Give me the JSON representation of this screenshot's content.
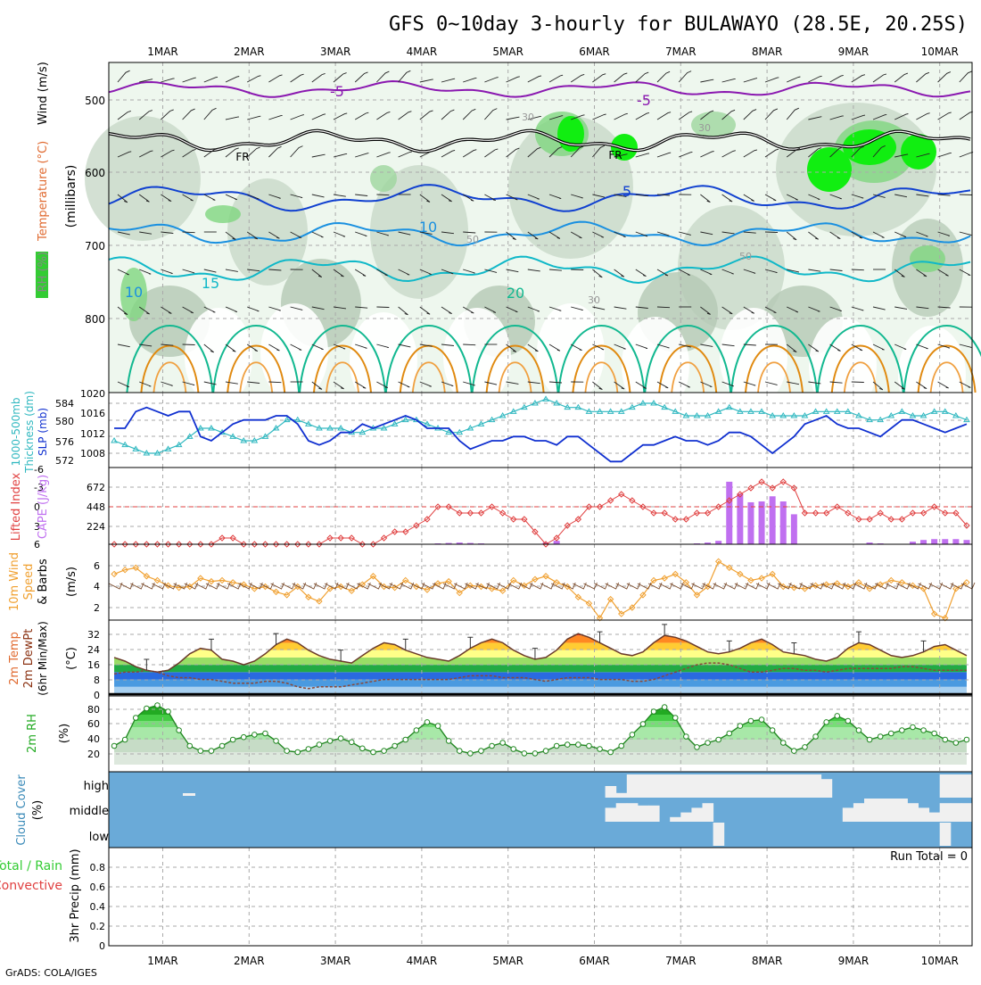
{
  "title": "GFS 0~10day 3-hourly for BULAWAYO (28.5E, 20.25S)",
  "footer": "GrADS: COLA/IGES",
  "dates": [
    "1MAR",
    "2MAR",
    "3MAR",
    "4MAR",
    "5MAR",
    "6MAR",
    "7MAR",
    "8MAR",
    "9MAR",
    "10MAR"
  ],
  "colors": {
    "rh_green": "#33cc33",
    "bright_green": "#11ee11",
    "temperature_warm": "#e08a10",
    "freezing": "#000000",
    "minus5": "#8a18b0",
    "plus5": "#1040d0",
    "plus10": "#1a90e0",
    "plus15": "#10b8c8",
    "plus20": "#12b890",
    "slp": "#1030d0",
    "thickness": "#30b8c0",
    "lifted_index": "#e04040",
    "cape": "#c070f0",
    "wind10m": "#f0a030",
    "cloud_bg": "#6aaad8",
    "cloud_fill": "#f0f0f0"
  },
  "upper_panel": {
    "ylabel_rh": "RH (%)",
    "ylabel_temp": "Temperature (°C)",
    "ylabel_wind": "Wind (m/s)",
    "ylabel_unit": "(millibars)",
    "yticks": [
      "500",
      "600",
      "700",
      "800"
    ],
    "contour_labels": [
      "-5",
      "-5",
      "FR",
      "FR",
      "5",
      "10",
      "10",
      "15",
      "20",
      "30",
      "30",
      "30",
      "50",
      "50"
    ]
  },
  "panels": {
    "slp": {
      "ylabel1": "1000-500mb",
      "ylabel2": "Thickness (dm)",
      "ylabel3": "SLP (mb)",
      "left_ticks": [
        "584",
        "580",
        "576",
        "572"
      ],
      "right_ticks": [
        "1020",
        "1016",
        "1012",
        "1008"
      ]
    },
    "cape": {
      "ylabel1": "Lifted Index",
      "ylabel2": "CAPE (J/kg)",
      "left_ticks": [
        "-6",
        "-3",
        "0",
        "3",
        "6"
      ],
      "right_ticks": [
        "672",
        "448",
        "224"
      ]
    },
    "wind": {
      "ylabel1": "10m Wind",
      "ylabel2": "Speed",
      "ylabel3": "& Barbs",
      "ylabel4": "(m/s)",
      "ticks": [
        "6",
        "4",
        "2"
      ]
    },
    "temp": {
      "ylabel1": "2m Temp",
      "ylabel2": "2m DewPt",
      "ylabel3": "(6hr Min/Max)",
      "ylabel4": "(°C)",
      "ticks": [
        "32",
        "24",
        "16",
        "8",
        "0"
      ]
    },
    "rh": {
      "ylabel1": "2m RH",
      "ylabel2": "(%)",
      "ticks": [
        "80",
        "60",
        "40",
        "20"
      ]
    },
    "cloud": {
      "ylabel1": "Cloud Cover",
      "ylabel2": "(%)",
      "levels": [
        "high",
        "middle",
        "low"
      ]
    },
    "precip": {
      "ylabel1": "Total / Rain",
      "ylabel2": "Convective",
      "ylabel3": "3hr Precip (mm)",
      "ticks": [
        "0.8",
        "0.6",
        "0.4",
        "0.2",
        "0"
      ],
      "run_total": "Run Total = 0"
    }
  },
  "chart_data": {
    "type": "line",
    "x_steps": 80,
    "slp_mb": [
      1014,
      1014,
      1018,
      1019,
      1018,
      1017,
      1018,
      1018,
      1012,
      1011,
      1013,
      1015,
      1016,
      1016,
      1016,
      1017,
      1017,
      1015,
      1011,
      1010,
      1011,
      1013,
      1013,
      1015,
      1014,
      1015,
      1016,
      1017,
      1016,
      1014,
      1014,
      1014,
      1011,
      1009,
      1010,
      1011,
      1011,
      1012,
      1012,
      1011,
      1011,
      1010,
      1012,
      1012,
      1010,
      1008,
      1006,
      1006,
      1008,
      1010,
      1010,
      1011,
      1012,
      1011,
      1011,
      1010,
      1011,
      1013,
      1013,
      1012,
      1010,
      1008,
      1010,
      1012,
      1015,
      1016,
      1017,
      1015,
      1014,
      1014,
      1013,
      1012,
      1014,
      1016,
      1016,
      1015,
      1014,
      1013,
      1014,
      1015
    ],
    "thickness_dm": [
      575,
      574,
      573,
      572,
      572,
      573,
      574,
      576,
      578,
      578,
      577,
      576,
      575,
      575,
      576,
      578,
      580,
      580,
      579,
      578,
      578,
      578,
      577,
      577,
      578,
      578,
      579,
      580,
      580,
      579,
      578,
      577,
      577,
      578,
      579,
      580,
      581,
      582,
      583,
      584,
      585,
      584,
      583,
      583,
      582,
      582,
      582,
      582,
      583,
      584,
      584,
      583,
      582,
      581,
      581,
      581,
      582,
      583,
      582,
      582,
      582,
      581,
      581,
      581,
      581,
      582,
      582,
      582,
      582,
      581,
      580,
      580,
      581,
      582,
      581,
      581,
      582,
      582,
      581,
      580
    ],
    "lifted_index": [
      6,
      6,
      6,
      6,
      6,
      6,
      6,
      6,
      6,
      6,
      5,
      5,
      6,
      6,
      6,
      6,
      6,
      6,
      6,
      6,
      5,
      5,
      5,
      6,
      6,
      5,
      4,
      4,
      3,
      2,
      0,
      0,
      1,
      1,
      1,
      0,
      1,
      2,
      2,
      4,
      6,
      5,
      3,
      2,
      0,
      0,
      -1,
      -2,
      -1,
      0,
      1,
      1,
      2,
      2,
      1,
      1,
      0,
      -1,
      -2,
      -3,
      -4,
      -3,
      -4,
      -3,
      1,
      1,
      1,
      0,
      1,
      2,
      2,
      1,
      2,
      2,
      1,
      1,
      0,
      1,
      1,
      3
    ],
    "cape_jkg": [
      0,
      0,
      0,
      0,
      0,
      0,
      0,
      0,
      0,
      0,
      0,
      0,
      0,
      0,
      0,
      0,
      0,
      0,
      0,
      0,
      0,
      0,
      0,
      0,
      0,
      0,
      0,
      0,
      0,
      5,
      10,
      15,
      20,
      15,
      10,
      0,
      0,
      0,
      0,
      0,
      20,
      40,
      0,
      0,
      0,
      0,
      0,
      0,
      0,
      0,
      0,
      0,
      0,
      0,
      10,
      20,
      40,
      730,
      590,
      490,
      500,
      560,
      500,
      350,
      0,
      0,
      0,
      0,
      0,
      0,
      20,
      10,
      0,
      0,
      30,
      50,
      60,
      60,
      60,
      50
    ],
    "wind10m_ms": [
      5.2,
      5.6,
      5.8,
      5.0,
      4.6,
      4.1,
      3.9,
      4.0,
      4.8,
      4.5,
      4.6,
      4.4,
      4.2,
      3.8,
      4.0,
      3.5,
      3.2,
      4.0,
      3.0,
      2.6,
      3.8,
      4.0,
      3.6,
      4.2,
      5.0,
      4.0,
      3.9,
      4.6,
      4.0,
      3.7,
      4.3,
      4.5,
      3.4,
      4.1,
      4.0,
      3.8,
      3.6,
      4.6,
      4.1,
      4.7,
      5.0,
      4.4,
      4.0,
      3.0,
      2.4,
      1.0,
      2.8,
      1.4,
      2.0,
      3.2,
      4.6,
      4.8,
      5.2,
      4.4,
      3.2,
      4.0,
      6.4,
      5.8,
      5.2,
      4.6,
      4.8,
      5.2,
      4.0,
      3.9,
      3.8,
      4.1,
      4.2,
      4.3,
      4.0,
      4.4,
      3.8,
      4.2,
      4.6,
      4.4,
      4.1,
      3.8,
      1.4,
      1.0,
      3.8,
      4.4
    ],
    "temp_2m_c": [
      20,
      18,
      15,
      13,
      12,
      13,
      17,
      22,
      25,
      24,
      19,
      18,
      16,
      18,
      22,
      27,
      30,
      28,
      24,
      21,
      19,
      18,
      17,
      21,
      25,
      28,
      27,
      24,
      22,
      20,
      19,
      18,
      21,
      25,
      28,
      30,
      28,
      24,
      21,
      19,
      20,
      24,
      30,
      33,
      31,
      28,
      25,
      22,
      21,
      23,
      28,
      32,
      31,
      29,
      26,
      23,
      22,
      23,
      25,
      28,
      30,
      27,
      23,
      22,
      21,
      19,
      18,
      20,
      25,
      28,
      27,
      24,
      21,
      20,
      21,
      23,
      26,
      27,
      24,
      21
    ],
    "dewpt_2m_c": [
      11,
      12,
      12,
      13,
      12,
      10,
      9,
      9,
      8,
      8,
      7,
      6,
      6,
      6,
      7,
      7,
      6,
      4,
      3,
      4,
      4,
      4,
      5,
      6,
      7,
      8,
      8,
      8,
      8,
      8,
      8,
      8,
      9,
      10,
      10,
      10,
      9,
      9,
      9,
      8,
      7,
      8,
      9,
      9,
      9,
      8,
      8,
      8,
      7,
      7,
      8,
      10,
      12,
      14,
      16,
      17,
      17,
      16,
      14,
      12,
      12,
      13,
      14,
      14,
      13,
      13,
      12,
      13,
      14,
      14,
      14,
      14,
      14,
      15,
      15,
      14,
      13,
      13,
      13,
      13
    ],
    "rh_2m_pct": [
      30,
      40,
      75,
      90,
      95,
      85,
      55,
      30,
      22,
      22,
      30,
      40,
      44,
      48,
      50,
      38,
      22,
      20,
      25,
      32,
      38,
      42,
      36,
      26,
      20,
      22,
      30,
      40,
      55,
      68,
      62,
      38,
      22,
      18,
      22,
      30,
      35,
      25,
      18,
      18,
      22,
      30,
      32,
      32,
      30,
      25,
      20,
      30,
      48,
      65,
      85,
      92,
      75,
      45,
      28,
      35,
      40,
      50,
      62,
      70,
      72,
      55,
      35,
      22,
      28,
      45,
      68,
      78,
      70,
      55,
      40,
      45,
      50,
      55,
      60,
      55,
      50,
      40,
      35,
      40
    ],
    "cloud_high_pct": [
      0,
      0,
      0,
      0,
      0,
      0,
      0,
      0,
      0,
      0,
      0,
      0,
      0,
      0,
      0,
      0,
      0,
      0,
      0,
      0,
      0,
      0,
      0,
      0,
      0,
      0,
      0,
      0,
      0,
      0,
      0,
      0,
      0,
      0,
      0,
      0,
      0,
      0,
      0,
      0,
      0,
      0,
      0,
      0,
      0,
      0,
      50,
      20,
      100,
      100,
      100,
      100,
      100,
      100,
      100,
      100,
      100,
      100,
      100,
      100,
      100,
      100,
      100,
      100,
      100,
      100,
      80,
      0,
      0,
      0,
      0,
      0,
      0,
      0,
      0,
      0,
      0,
      100,
      100,
      100
    ],
    "cloud_middle_pct": [
      0,
      0,
      0,
      0,
      0,
      0,
      0,
      0,
      0,
      0,
      0,
      0,
      0,
      0,
      0,
      0,
      0,
      0,
      0,
      0,
      0,
      0,
      0,
      0,
      0,
      0,
      0,
      0,
      0,
      0,
      0,
      0,
      0,
      0,
      0,
      0,
      0,
      0,
      0,
      0,
      0,
      0,
      0,
      0,
      0,
      0,
      60,
      80,
      80,
      70,
      70,
      0,
      20,
      40,
      60,
      80,
      0,
      0,
      0,
      0,
      0,
      0,
      0,
      0,
      0,
      0,
      0,
      0,
      60,
      80,
      100,
      100,
      100,
      100,
      80,
      60,
      40,
      80,
      80,
      80
    ],
    "cloud_low_pct": [
      0,
      0,
      0,
      0,
      0,
      0,
      0,
      0,
      0,
      0,
      0,
      0,
      0,
      0,
      0,
      0,
      0,
      0,
      0,
      0,
      0,
      0,
      0,
      0,
      0,
      0,
      0,
      0,
      0,
      0,
      0,
      0,
      0,
      0,
      0,
      0,
      0,
      0,
      0,
      0,
      0,
      0,
      0,
      0,
      0,
      0,
      0,
      0,
      0,
      0,
      0,
      0,
      0,
      0,
      0,
      0,
      100,
      0,
      0,
      0,
      0,
      0,
      0,
      0,
      0,
      0,
      0,
      0,
      0,
      0,
      0,
      0,
      0,
      0,
      0,
      0,
      0,
      100,
      0,
      0
    ],
    "precip_3hr_mm": [
      0,
      0,
      0,
      0,
      0,
      0,
      0,
      0,
      0,
      0,
      0,
      0,
      0,
      0,
      0,
      0,
      0,
      0,
      0,
      0,
      0,
      0,
      0,
      0,
      0,
      0,
      0,
      0,
      0,
      0,
      0,
      0,
      0,
      0,
      0,
      0,
      0,
      0,
      0,
      0,
      0,
      0,
      0,
      0,
      0,
      0,
      0,
      0,
      0,
      0,
      0,
      0,
      0,
      0,
      0,
      0,
      0,
      0,
      0,
      0,
      0,
      0,
      0,
      0,
      0,
      0,
      0,
      0,
      0,
      0,
      0,
      0,
      0,
      0,
      0,
      0,
      0,
      0,
      0,
      0
    ],
    "cape_ylim": [
      0,
      896
    ],
    "li_ylim": [
      -6,
      6
    ],
    "wind_ylim": [
      0,
      8
    ],
    "temp_ylim": [
      0,
      40
    ],
    "rh_ylim": [
      0,
      100
    ],
    "precip_ylim": [
      0,
      1
    ],
    "grid": true
  }
}
